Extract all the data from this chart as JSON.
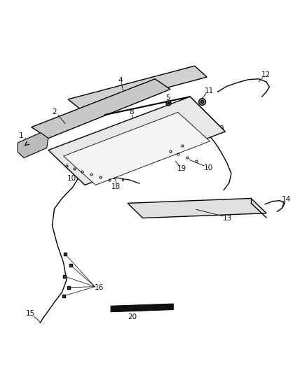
{
  "bg_color": "#ffffff",
  "fig_width": 4.38,
  "fig_height": 5.33,
  "dpi": 100
}
